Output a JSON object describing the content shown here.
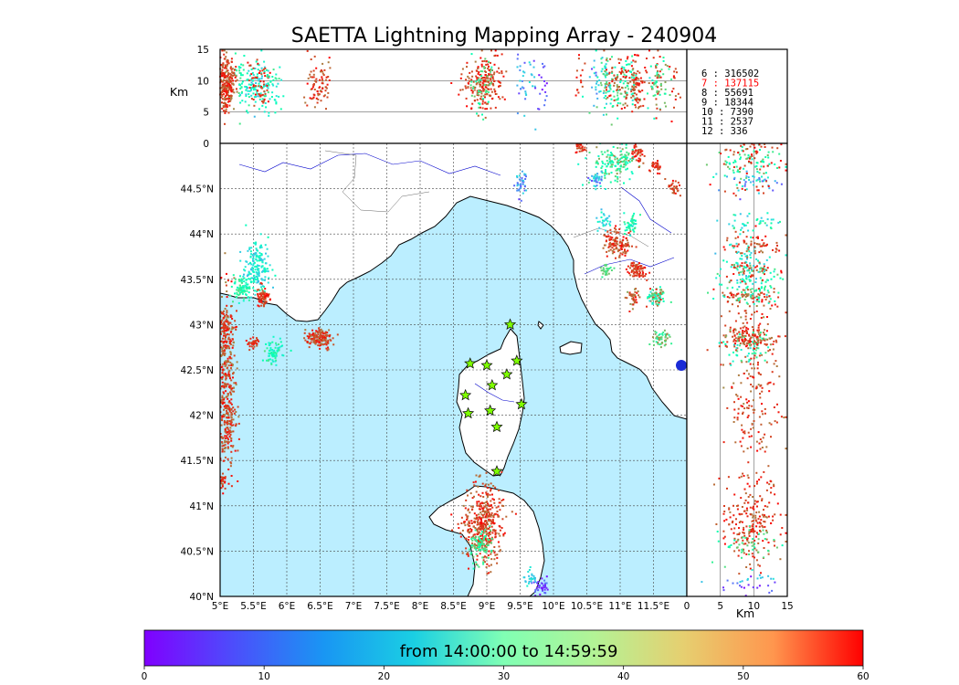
{
  "chart_data": {
    "type": "scatter",
    "title": "SAETTA Lightning Mapping Array - 240904",
    "map": {
      "lon_range": [
        5,
        12
      ],
      "lat_range": [
        40,
        45
      ],
      "lon_ticks": [
        "5°E",
        "5.5°E",
        "6°E",
        "6.5°E",
        "7°E",
        "7.5°E",
        "8°E",
        "8.5°E",
        "9°E",
        "9.5°E",
        "10°E",
        "10.5°E",
        "11°E",
        "11.5°E"
      ],
      "lat_ticks": [
        "40°N",
        "40.5°N",
        "41°N",
        "41.5°N",
        "42°N",
        "42.5°N",
        "43°N",
        "43.5°N",
        "44°N",
        "44.5°N"
      ],
      "grid": true,
      "sea_color": "#bbeeff",
      "station_color": "#7fff00",
      "stations": [
        {
          "lon": 9.35,
          "lat": 43.0
        },
        {
          "lon": 8.75,
          "lat": 42.57
        },
        {
          "lon": 9.0,
          "lat": 42.55
        },
        {
          "lon": 9.45,
          "lat": 42.6
        },
        {
          "lon": 9.3,
          "lat": 42.45
        },
        {
          "lon": 9.08,
          "lat": 42.33
        },
        {
          "lon": 8.68,
          "lat": 42.22
        },
        {
          "lon": 9.52,
          "lat": 42.12
        },
        {
          "lon": 8.72,
          "lat": 42.02
        },
        {
          "lon": 9.05,
          "lat": 42.05
        },
        {
          "lon": 9.15,
          "lat": 41.87
        },
        {
          "lon": 9.15,
          "lat": 41.38
        }
      ],
      "clusters": [
        {
          "lon": 5.55,
          "lat": 43.65,
          "slon": 0.1,
          "slat": 0.15,
          "n": 180,
          "tmin": 15,
          "tmax": 30
        },
        {
          "lon": 5.35,
          "lat": 43.4,
          "slon": 0.08,
          "slat": 0.07,
          "n": 90,
          "tmin": 25,
          "tmax": 40
        },
        {
          "lon": 5.65,
          "lat": 43.3,
          "slon": 0.05,
          "slat": 0.05,
          "n": 70,
          "tmin": 52,
          "tmax": 60
        },
        {
          "lon": 5.08,
          "lat": 42.7,
          "slon": 0.08,
          "slat": 0.35,
          "n": 260,
          "tmin": 48,
          "tmax": 60
        },
        {
          "lon": 5.1,
          "lat": 41.95,
          "slon": 0.07,
          "slat": 0.3,
          "n": 220,
          "tmin": 50,
          "tmax": 60
        },
        {
          "lon": 5.08,
          "lat": 43.0,
          "slon": 0.05,
          "slat": 0.08,
          "n": 60,
          "tmin": 52,
          "tmax": 60
        },
        {
          "lon": 5.05,
          "lat": 41.25,
          "slon": 0.03,
          "slat": 0.05,
          "n": 25,
          "tmin": 52,
          "tmax": 60
        },
        {
          "lon": 5.5,
          "lat": 42.8,
          "slon": 0.05,
          "slat": 0.03,
          "n": 40,
          "tmin": 52,
          "tmax": 60
        },
        {
          "lon": 5.8,
          "lat": 42.7,
          "slon": 0.07,
          "slat": 0.06,
          "n": 70,
          "tmin": 20,
          "tmax": 40
        },
        {
          "lon": 6.48,
          "lat": 42.85,
          "slon": 0.1,
          "slat": 0.05,
          "n": 160,
          "tmin": 50,
          "tmax": 60
        },
        {
          "lon": 8.95,
          "lat": 40.8,
          "slon": 0.15,
          "slat": 0.22,
          "n": 420,
          "tmin": 50,
          "tmax": 60
        },
        {
          "lon": 8.9,
          "lat": 40.55,
          "slon": 0.08,
          "slat": 0.08,
          "n": 90,
          "tmin": 30,
          "tmax": 45
        },
        {
          "lon": 9.8,
          "lat": 40.1,
          "slon": 0.06,
          "slat": 0.05,
          "n": 40,
          "tmin": 0,
          "tmax": 10
        },
        {
          "lon": 9.65,
          "lat": 40.2,
          "slon": 0.05,
          "slat": 0.05,
          "n": 25,
          "tmin": 15,
          "tmax": 25
        },
        {
          "lon": 9.5,
          "lat": 44.55,
          "slon": 0.05,
          "slat": 0.07,
          "n": 40,
          "tmin": 5,
          "tmax": 20
        },
        {
          "lon": 10.9,
          "lat": 44.8,
          "slon": 0.15,
          "slat": 0.1,
          "n": 150,
          "tmin": 25,
          "tmax": 50
        },
        {
          "lon": 10.65,
          "lat": 44.6,
          "slon": 0.05,
          "slat": 0.05,
          "n": 40,
          "tmin": 5,
          "tmax": 25
        },
        {
          "lon": 11.25,
          "lat": 44.9,
          "slon": 0.05,
          "slat": 0.05,
          "n": 40,
          "tmin": 52,
          "tmax": 60
        },
        {
          "lon": 11.55,
          "lat": 44.75,
          "slon": 0.05,
          "slat": 0.04,
          "n": 30,
          "tmin": 52,
          "tmax": 60
        },
        {
          "lon": 10.4,
          "lat": 44.95,
          "slon": 0.05,
          "slat": 0.03,
          "n": 30,
          "tmin": 52,
          "tmax": 60
        },
        {
          "lon": 10.95,
          "lat": 43.9,
          "slon": 0.1,
          "slat": 0.08,
          "n": 120,
          "tmin": 50,
          "tmax": 60
        },
        {
          "lon": 11.15,
          "lat": 44.1,
          "slon": 0.06,
          "slat": 0.05,
          "n": 50,
          "tmin": 20,
          "tmax": 40
        },
        {
          "lon": 10.75,
          "lat": 44.15,
          "slon": 0.05,
          "slat": 0.05,
          "n": 30,
          "tmin": 15,
          "tmax": 30
        },
        {
          "lon": 11.25,
          "lat": 43.6,
          "slon": 0.07,
          "slat": 0.05,
          "n": 80,
          "tmin": 52,
          "tmax": 60
        },
        {
          "lon": 10.8,
          "lat": 43.6,
          "slon": 0.04,
          "slat": 0.04,
          "n": 30,
          "tmin": 35,
          "tmax": 45
        },
        {
          "lon": 11.55,
          "lat": 43.3,
          "slon": 0.07,
          "slat": 0.06,
          "n": 80,
          "tmin": 20,
          "tmax": 60
        },
        {
          "lon": 11.2,
          "lat": 43.3,
          "slon": 0.05,
          "slat": 0.05,
          "n": 40,
          "tmin": 45,
          "tmax": 60
        },
        {
          "lon": 11.6,
          "lat": 42.85,
          "slon": 0.07,
          "slat": 0.05,
          "n": 50,
          "tmin": 30,
          "tmax": 50
        },
        {
          "lon": 11.8,
          "lat": 44.5,
          "slon": 0.05,
          "slat": 0.05,
          "n": 30,
          "tmin": 50,
          "tmax": 60
        }
      ]
    },
    "top_panel": {
      "ylabel": "Km",
      "y_range": [
        0,
        15
      ],
      "y_ticks": [
        "0",
        "5",
        "10",
        "15"
      ]
    },
    "side_panel": {
      "xlabel": "Km",
      "x_range": [
        0,
        15
      ],
      "x_ticks": [
        "0",
        "5",
        "10",
        "15"
      ]
    },
    "counts": [
      {
        "label": "6  :   316502",
        "color": "#000000"
      },
      {
        "label": "7  :   137115",
        "color": "#ff0000"
      },
      {
        "label": "8  :    55691",
        "color": "#000000"
      },
      {
        "label": "9  :    18344",
        "color": "#000000"
      },
      {
        "label": "10 :     7390",
        "color": "#000000"
      },
      {
        "label": "11 :     2537",
        "color": "#000000"
      },
      {
        "label": "12 :      336",
        "color": "#000000"
      }
    ],
    "colorbar": {
      "label": "from 14:00:00 to 14:59:59",
      "range": [
        0,
        60
      ],
      "ticks": [
        "0",
        "10",
        "20",
        "30",
        "40",
        "50",
        "60"
      ],
      "colormap": "rainbow"
    }
  }
}
